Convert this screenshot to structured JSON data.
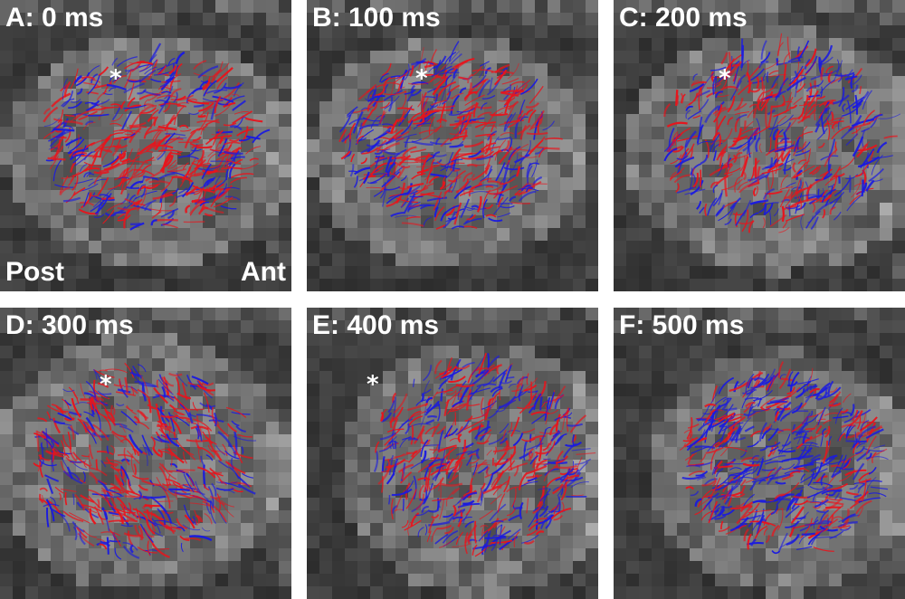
{
  "panels": [
    {
      "label": "A: 0 ms"
    },
    {
      "label": "B: 100 ms"
    },
    {
      "label": "C: 200 ms"
    },
    {
      "label": "D: 300 ms"
    },
    {
      "label": "E: 400 ms"
    },
    {
      "label": "F: 500 ms"
    }
  ],
  "orientation": {
    "posterior": "Post",
    "anterior": "Ant"
  },
  "marker": "*",
  "colors": {
    "positive": "#e8141c",
    "negative": "#1a1ae0",
    "background": "#3a3a3a"
  }
}
